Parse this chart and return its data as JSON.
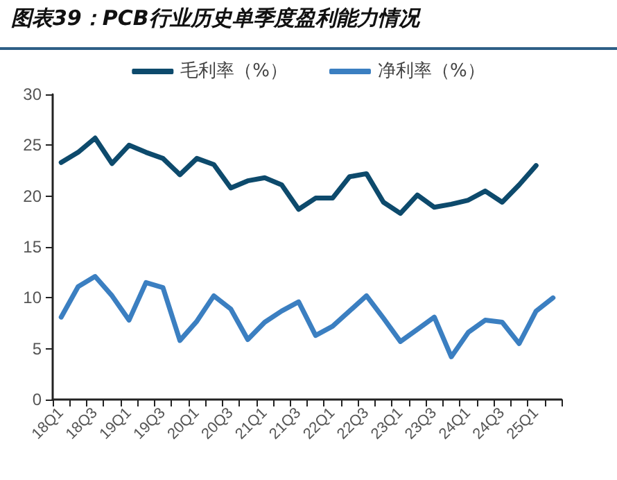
{
  "chart_data": {
    "type": "line",
    "title": "图表39：PCB行业历史单季度盈利能力情况",
    "categories": [
      "18Q1",
      null,
      "18Q3",
      null,
      "19Q1",
      null,
      "19Q3",
      null,
      "20Q1",
      null,
      "20Q3",
      null,
      "21Q1",
      null,
      "21Q3",
      null,
      "22Q1",
      null,
      "22Q3",
      null,
      "23Q1",
      null,
      "23Q3",
      null,
      "24Q1",
      null,
      "24Q3",
      null,
      "25Q1",
      null
    ],
    "series": [
      {
        "name": "毛利率（%）",
        "color": "#0d4a6c",
        "values": [
          23.3,
          24.3,
          25.7,
          23.2,
          25.0,
          24.3,
          23.7,
          22.1,
          23.7,
          23.1,
          20.8,
          21.5,
          21.8,
          21.1,
          18.7,
          19.8,
          19.8,
          21.9,
          22.2,
          19.4,
          18.3,
          20.1,
          18.9,
          19.2,
          19.6,
          20.5,
          19.4,
          21.1,
          23.0,
          null
        ]
      },
      {
        "name": "净利率（%）",
        "color": "#3b7fc1",
        "values": [
          8.1,
          11.1,
          12.1,
          10.2,
          7.8,
          11.5,
          11.0,
          5.8,
          7.7,
          10.2,
          8.9,
          5.9,
          7.6,
          8.7,
          9.6,
          6.3,
          7.2,
          8.7,
          10.2,
          8.0,
          5.7,
          6.9,
          8.1,
          4.2,
          6.6,
          7.8,
          7.6,
          5.5,
          8.7,
          10.0
        ]
      }
    ],
    "ylim": [
      0,
      30
    ],
    "yticks": [
      0,
      5,
      10,
      15,
      20,
      25,
      30
    ],
    "grid": false,
    "legend": "top",
    "marker": "none",
    "line_style": "solid"
  }
}
